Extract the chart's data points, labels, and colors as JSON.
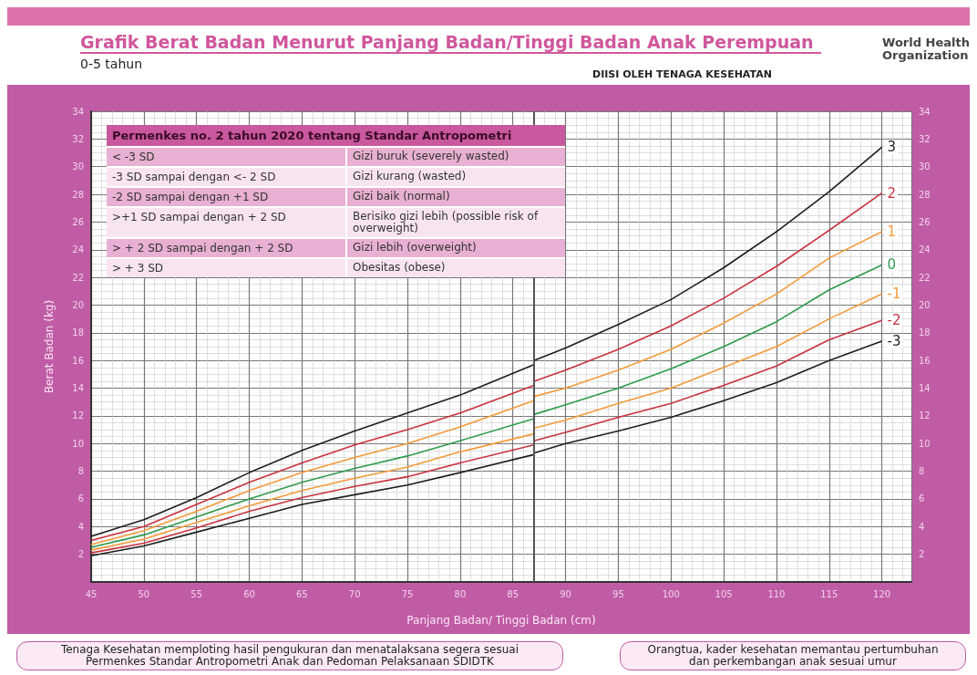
{
  "chart_data": {
    "type": "line",
    "title": "Grafik Berat Badan Menurut Panjang Badan/Tinggi Badan Anak Perempuan",
    "subtitle": "0-5 tahun",
    "xlabel": "Panjang Badan/ Tinggi Badan (cm)",
    "ylabel": "Berat Badan (kg)",
    "x": [
      45,
      50,
      55,
      60,
      65,
      70,
      75,
      80,
      87,
      87,
      90,
      95,
      100,
      105,
      110,
      115,
      120
    ],
    "series": [
      {
        "name": "3",
        "color": "#1e1e1e",
        "values": [
          3.3,
          4.5,
          6.1,
          7.9,
          9.5,
          10.9,
          12.2,
          13.5,
          15.7,
          16.0,
          16.9,
          18.6,
          20.4,
          22.7,
          25.3,
          28.2,
          31.4
        ]
      },
      {
        "name": "2",
        "color": "#c8323f",
        "values": [
          3.0,
          4.0,
          5.6,
          7.2,
          8.6,
          9.9,
          11.0,
          12.2,
          14.2,
          14.5,
          15.3,
          16.8,
          18.5,
          20.5,
          22.8,
          25.4,
          28.1
        ]
      },
      {
        "name": "1",
        "color": "#f39a3a",
        "values": [
          2.7,
          3.7,
          5.1,
          6.6,
          7.9,
          9.0,
          10.0,
          11.2,
          13.1,
          13.4,
          14.0,
          15.3,
          16.8,
          18.7,
          20.8,
          23.4,
          25.3
        ]
      },
      {
        "name": "0",
        "color": "#2e9a4c",
        "values": [
          2.5,
          3.4,
          4.7,
          6.0,
          7.2,
          8.2,
          9.1,
          10.2,
          11.8,
          12.1,
          12.8,
          14.0,
          15.4,
          17.0,
          18.8,
          21.1,
          22.9
        ]
      },
      {
        "name": "-1",
        "color": "#f39a3a",
        "values": [
          2.3,
          3.1,
          4.3,
          5.5,
          6.6,
          7.5,
          8.3,
          9.4,
          10.7,
          11.1,
          11.7,
          12.9,
          14.0,
          15.5,
          17.0,
          19.0,
          20.8
        ]
      },
      {
        "name": "-2",
        "color": "#c8323f",
        "values": [
          2.1,
          2.8,
          3.9,
          5.1,
          6.1,
          6.9,
          7.6,
          8.6,
          9.9,
          10.2,
          10.8,
          11.9,
          12.9,
          14.2,
          15.6,
          17.5,
          18.9
        ]
      },
      {
        "name": "-3",
        "color": "#1e1e1e",
        "values": [
          1.9,
          2.6,
          3.6,
          4.6,
          5.6,
          6.3,
          7.0,
          7.9,
          9.2,
          9.3,
          10.0,
          10.9,
          11.9,
          13.1,
          14.4,
          16.0,
          17.4
        ]
      }
    ],
    "xlim": [
      45,
      122.8
    ],
    "xticks": [
      45,
      50,
      55,
      60,
      65,
      70,
      75,
      80,
      85,
      90,
      95,
      100,
      105,
      110,
      115,
      120
    ],
    "ylim": [
      0,
      34
    ],
    "yticks": [
      2,
      4,
      6,
      8,
      10,
      12,
      14,
      16,
      18,
      20,
      22,
      24,
      26,
      28,
      30,
      32,
      34
    ],
    "y2lim": [
      0,
      34
    ],
    "y2ticks": [
      2,
      4,
      6,
      8,
      10,
      12,
      14,
      16,
      18,
      20,
      22,
      24,
      26,
      28,
      30,
      32,
      34
    ],
    "ref_lines": [
      {
        "axis": "x",
        "value": 87,
        "color": "#555555"
      }
    ],
    "grid": true,
    "marker": "none",
    "line_style": "solid",
    "annotations": [
      "Permenkes no. 2 tahun 2020 tentang Standar Antropometri",
      "< -3 SD",
      "Gizi buruk (severely wasted)",
      "-3 SD sampai dengan <- 2 SD",
      "Gizi kurang (wasted)",
      "-2 SD sampai dengan +1 SD",
      "Gizi baik (normal)",
      ">+1 SD sampai dengan + 2 SD",
      "Berisiko gizi lebih (possible risk of overweight)",
      "> + 2 SD sampai dengan + 2 SD",
      "Gizi lebih (overweight)",
      "> + 3 SD",
      "Obesitas (obese)",
      "DIISI OLEH TENAGA KESEHATAN",
      "World Health Organization",
      "Tenaga Kesehatan memploting hasil pengukuran dan menatalaksana segera sesuai Permenkes Standar Antropometri Anak dan Pedoman Pelaksanaan SDIDTK",
      "Orangtua, kader kesehatan memantau pertumbuhan dan perkembangan anak sesuai umur"
    ]
  }
}
